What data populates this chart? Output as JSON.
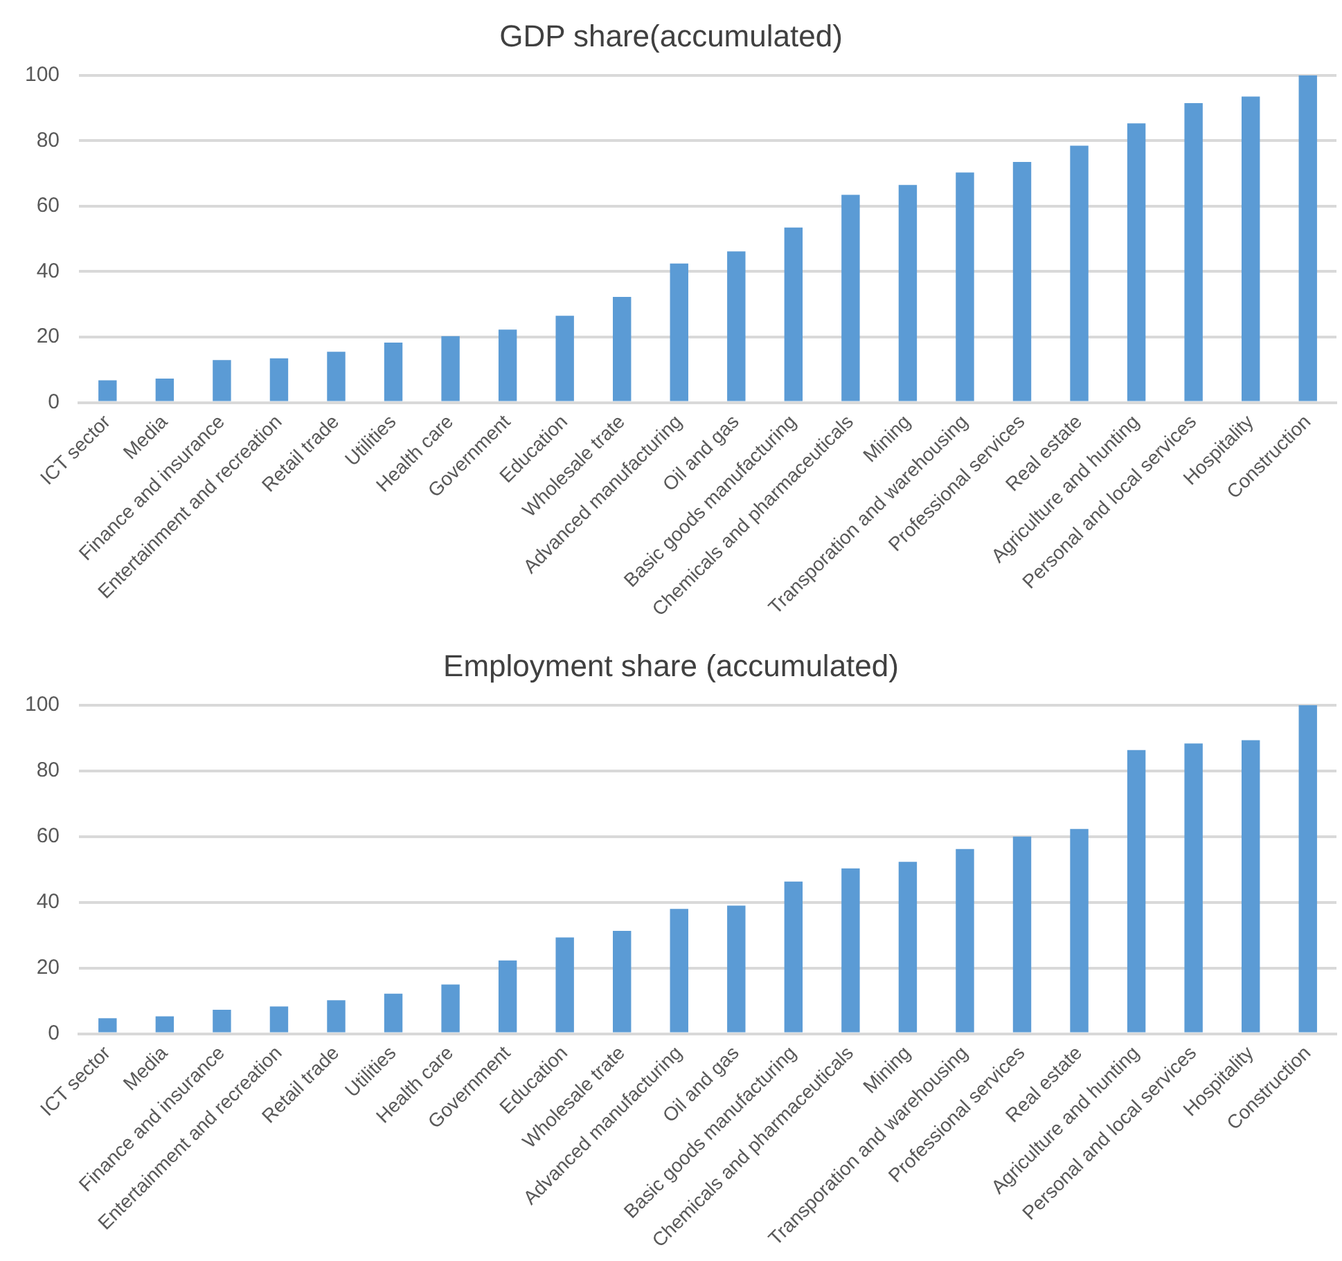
{
  "chart_data": [
    {
      "type": "bar",
      "title": "GDP share(accumulated)",
      "categories": [
        "ICT sector",
        "Media",
        "Finance and insurance",
        "Entertainment and recreation",
        "Retail trade",
        "Utilities",
        "Health care",
        "Government",
        "Education",
        "Wholesale trate",
        "Advanced manufacturing",
        "Oil and gas",
        "Basic goods manufacturing",
        "Chemicals and pharmaceuticals",
        "Mining",
        "Transporation and warehousing",
        "Professional services",
        "Real estate",
        "Agriculture and hunting",
        "Personal and local services",
        "Hospitality",
        "Construction"
      ],
      "values": [
        6.8,
        7.3,
        13,
        13.5,
        15.5,
        18.3,
        20.3,
        22.3,
        26.5,
        32.3,
        42.5,
        46.2,
        53.5,
        63.5,
        66.5,
        70.3,
        73.5,
        78.5,
        85.3,
        91.5,
        93.5,
        100
      ],
      "color": "#5b9bd5",
      "ylim": [
        0,
        100
      ],
      "yticks": [
        0,
        20,
        40,
        60,
        80,
        100
      ],
      "grid": "y",
      "legend": false
    },
    {
      "type": "bar",
      "title": "Employment share (accumulated)",
      "categories": [
        "ICT sector",
        "Media",
        "Finance and insurance",
        "Entertainment and recreation",
        "Retail trade",
        "Utilities",
        "Health care",
        "Government",
        "Education",
        "Wholesale trate",
        "Advanced manufacturing",
        "Oil and gas",
        "Basic goods manufacturing",
        "Chemicals and pharmaceuticals",
        "Mining",
        "Transporation and warehousing",
        "Professional services",
        "Real estate",
        "Agriculture and hunting",
        "Personal and local services",
        "Hospitality",
        "Construction"
      ],
      "values": [
        4.7,
        5.3,
        7.3,
        8.3,
        10.2,
        12.2,
        15,
        22.3,
        29.3,
        31.3,
        38,
        39,
        46.3,
        50.3,
        52.3,
        56.2,
        60,
        62.3,
        86.3,
        88.3,
        89.3,
        100
      ],
      "color": "#5b9bd5",
      "ylim": [
        0,
        100
      ],
      "yticks": [
        0,
        20,
        40,
        60,
        80,
        100
      ],
      "grid": "y",
      "legend": false
    }
  ]
}
